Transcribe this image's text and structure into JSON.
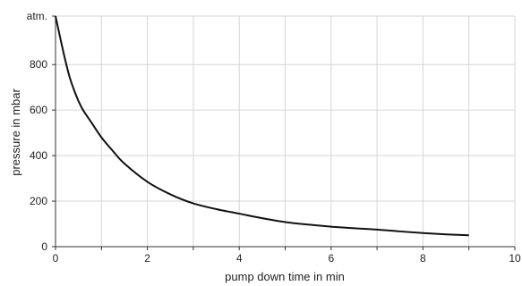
{
  "chart_data": {
    "type": "line",
    "title": "",
    "xlabel": "pump down time in min",
    "ylabel": "pressure in mbar",
    "xlim": [
      0,
      10
    ],
    "ylim": [
      0,
      1013
    ],
    "x_ticks": [
      0,
      2,
      4,
      6,
      8,
      10
    ],
    "x_tick_labels": [
      "0",
      "2",
      "4",
      "6",
      "8",
      "10"
    ],
    "y_ticks": [
      0,
      200,
      400,
      600,
      800,
      1013
    ],
    "y_tick_labels": [
      "0",
      "200",
      "400",
      "600",
      "800",
      "atm."
    ],
    "grid": true,
    "series": [
      {
        "x": [
          0,
          0.1,
          0.2,
          0.3,
          0.4,
          0.5,
          0.6,
          0.8,
          1.0,
          1.25,
          1.5,
          2.0,
          2.5,
          3.0,
          3.5,
          4.0,
          4.5,
          5.0,
          5.5,
          6.0,
          6.5,
          7.0,
          7.5,
          8.0,
          8.5,
          9.0
        ],
        "y": [
          1013,
          920,
          830,
          750,
          690,
          640,
          600,
          540,
          480,
          420,
          365,
          285,
          230,
          190,
          165,
          145,
          125,
          108,
          97,
          88,
          81,
          75,
          67,
          60,
          54,
          50
        ],
        "color": "#111111"
      }
    ]
  }
}
